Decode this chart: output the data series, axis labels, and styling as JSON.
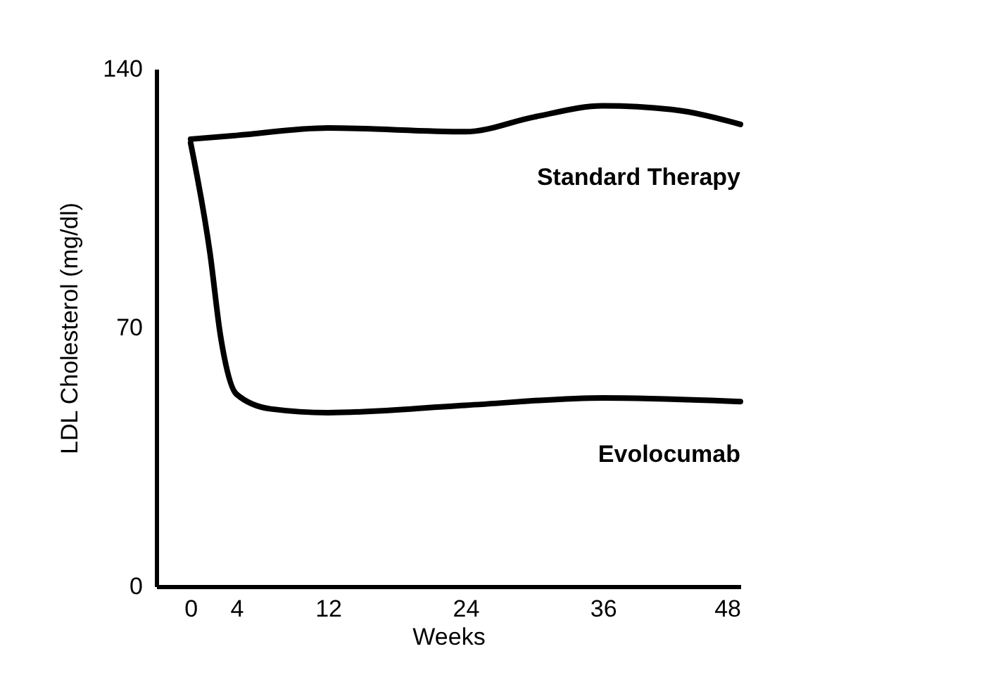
{
  "chart_data": {
    "type": "line",
    "xlabel": "Weeks",
    "ylabel": "LDL Cholesterol (mg/dl)",
    "xlim": [
      -3,
      48
    ],
    "xticks": [
      0,
      4,
      12,
      24,
      36,
      48
    ],
    "ylim": [
      0,
      140
    ],
    "yticks": [
      0,
      70,
      140
    ],
    "grid": false,
    "legend": false,
    "marker": "none",
    "line_style": "solid",
    "series": [
      {
        "name": "Standard Therapy",
        "color": "#000000",
        "x": [
          0,
          4,
          12,
          24,
          30,
          36,
          42,
          48
        ],
        "values": [
          121,
          122,
          124,
          123,
          127,
          130,
          129,
          125
        ]
      },
      {
        "name": "Evolocumab",
        "color": "#000000",
        "x": [
          0,
          1.7,
          2.6,
          4,
          7,
          12,
          24,
          36,
          48
        ],
        "values": [
          120,
          90,
          68,
          52,
          48,
          47,
          49,
          51,
          50
        ]
      }
    ]
  }
}
